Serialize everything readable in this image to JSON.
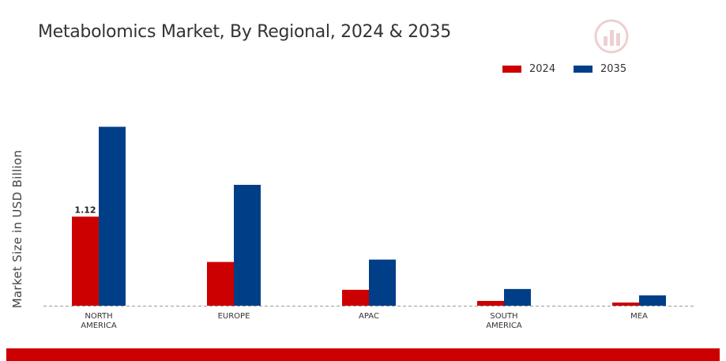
{
  "chart_data": {
    "type": "bar",
    "title": "Metabolomics Market, By Regional, 2024 & 2035",
    "xlabel": "",
    "ylabel": "Market Size in USD Billion",
    "categories": [
      "NORTH AMERICA",
      "EUROPE",
      "APAC",
      "SOUTH AMERICA",
      "MEA"
    ],
    "category_lines": [
      [
        "NORTH",
        "AMERICA"
      ],
      [
        "EUROPE"
      ],
      [
        "APAC"
      ],
      [
        "SOUTH",
        "AMERICA"
      ],
      [
        "MEA"
      ]
    ],
    "series": [
      {
        "name": "2024",
        "color": "#cc0000",
        "values": [
          1.12,
          0.55,
          0.2,
          0.06,
          0.04
        ]
      },
      {
        "name": "2035",
        "color": "#003f88",
        "values": [
          2.25,
          1.52,
          0.58,
          0.21,
          0.13
        ]
      }
    ],
    "data_labels": [
      {
        "series": 0,
        "index": 0,
        "text": "1.12"
      }
    ],
    "ylim": [
      0,
      3.0
    ],
    "grid": false,
    "legend_position": "top-right"
  },
  "colors": {
    "baseline": "#999999",
    "footer_bar": "#cc0000"
  }
}
